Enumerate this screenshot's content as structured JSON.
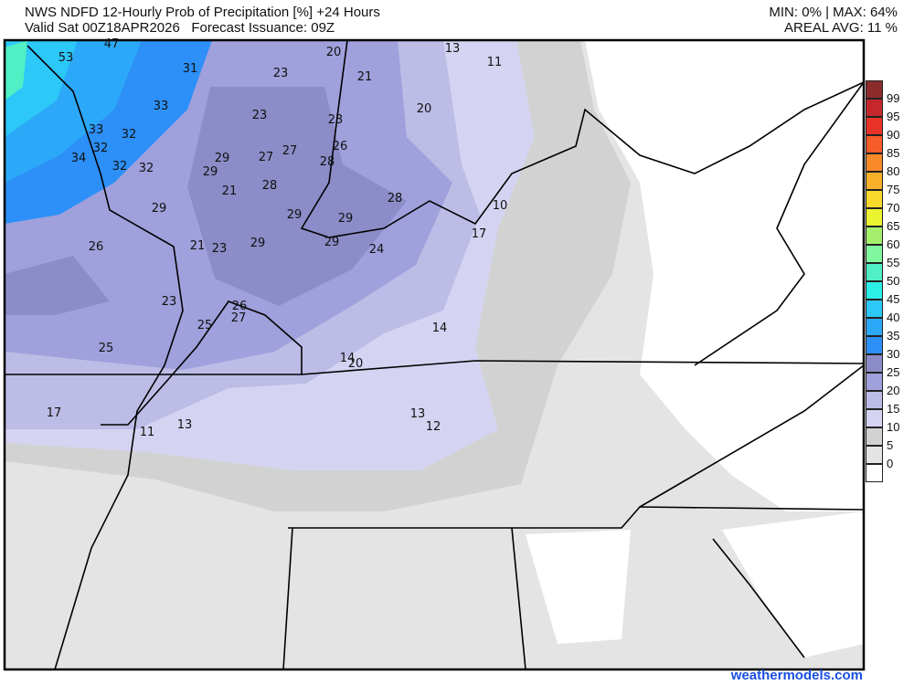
{
  "header": {
    "title": "NWS NDFD 12-Hourly Prob of Precipitation [%] +24 Hours",
    "valid": "Valid Sat 00Z18APR2026   Forecast Issuance: 09Z",
    "minmax": "MIN: 0% | MAX: 64%",
    "areal_avg": "AREAL AVG: 11 %"
  },
  "legend": {
    "labels": [
      "99",
      "95",
      "90",
      "85",
      "80",
      "75",
      "70",
      "65",
      "60",
      "55",
      "50",
      "45",
      "40",
      "35",
      "30",
      "25",
      "20",
      "15",
      "10",
      "5",
      "0"
    ],
    "colors": [
      "#8b2b2b",
      "#c4282c",
      "#ea3328",
      "#f65c28",
      "#f88a2a",
      "#f8b02a",
      "#f8d82c",
      "#ecf432",
      "#a4f06c",
      "#80f8a0",
      "#50f0c4",
      "#2cf0e8",
      "#2cc8f8",
      "#2ca8f8",
      "#2c90f8",
      "#8c8cc8",
      "#a0a0dc",
      "#bcbce6",
      "#d4d4f2",
      "#d2d2d2",
      "#e4e4e4",
      "#ffffff"
    ]
  },
  "map_values": [
    "47",
    "53",
    "31",
    "20",
    "23",
    "13",
    "11",
    "21",
    "33",
    "23",
    "23",
    "20",
    "33",
    "32",
    "32",
    "26",
    "34",
    "32",
    "32",
    "29",
    "27",
    "27",
    "28",
    "29",
    "28",
    "21",
    "28",
    "10",
    "29",
    "29",
    "29",
    "29",
    "21",
    "23",
    "29",
    "26",
    "24",
    "17",
    "23",
    "26",
    "27",
    "25",
    "14",
    "25",
    "14",
    "20",
    "13",
    "12",
    "17",
    "11",
    "13"
  ],
  "credit": "weathermodels.com"
}
